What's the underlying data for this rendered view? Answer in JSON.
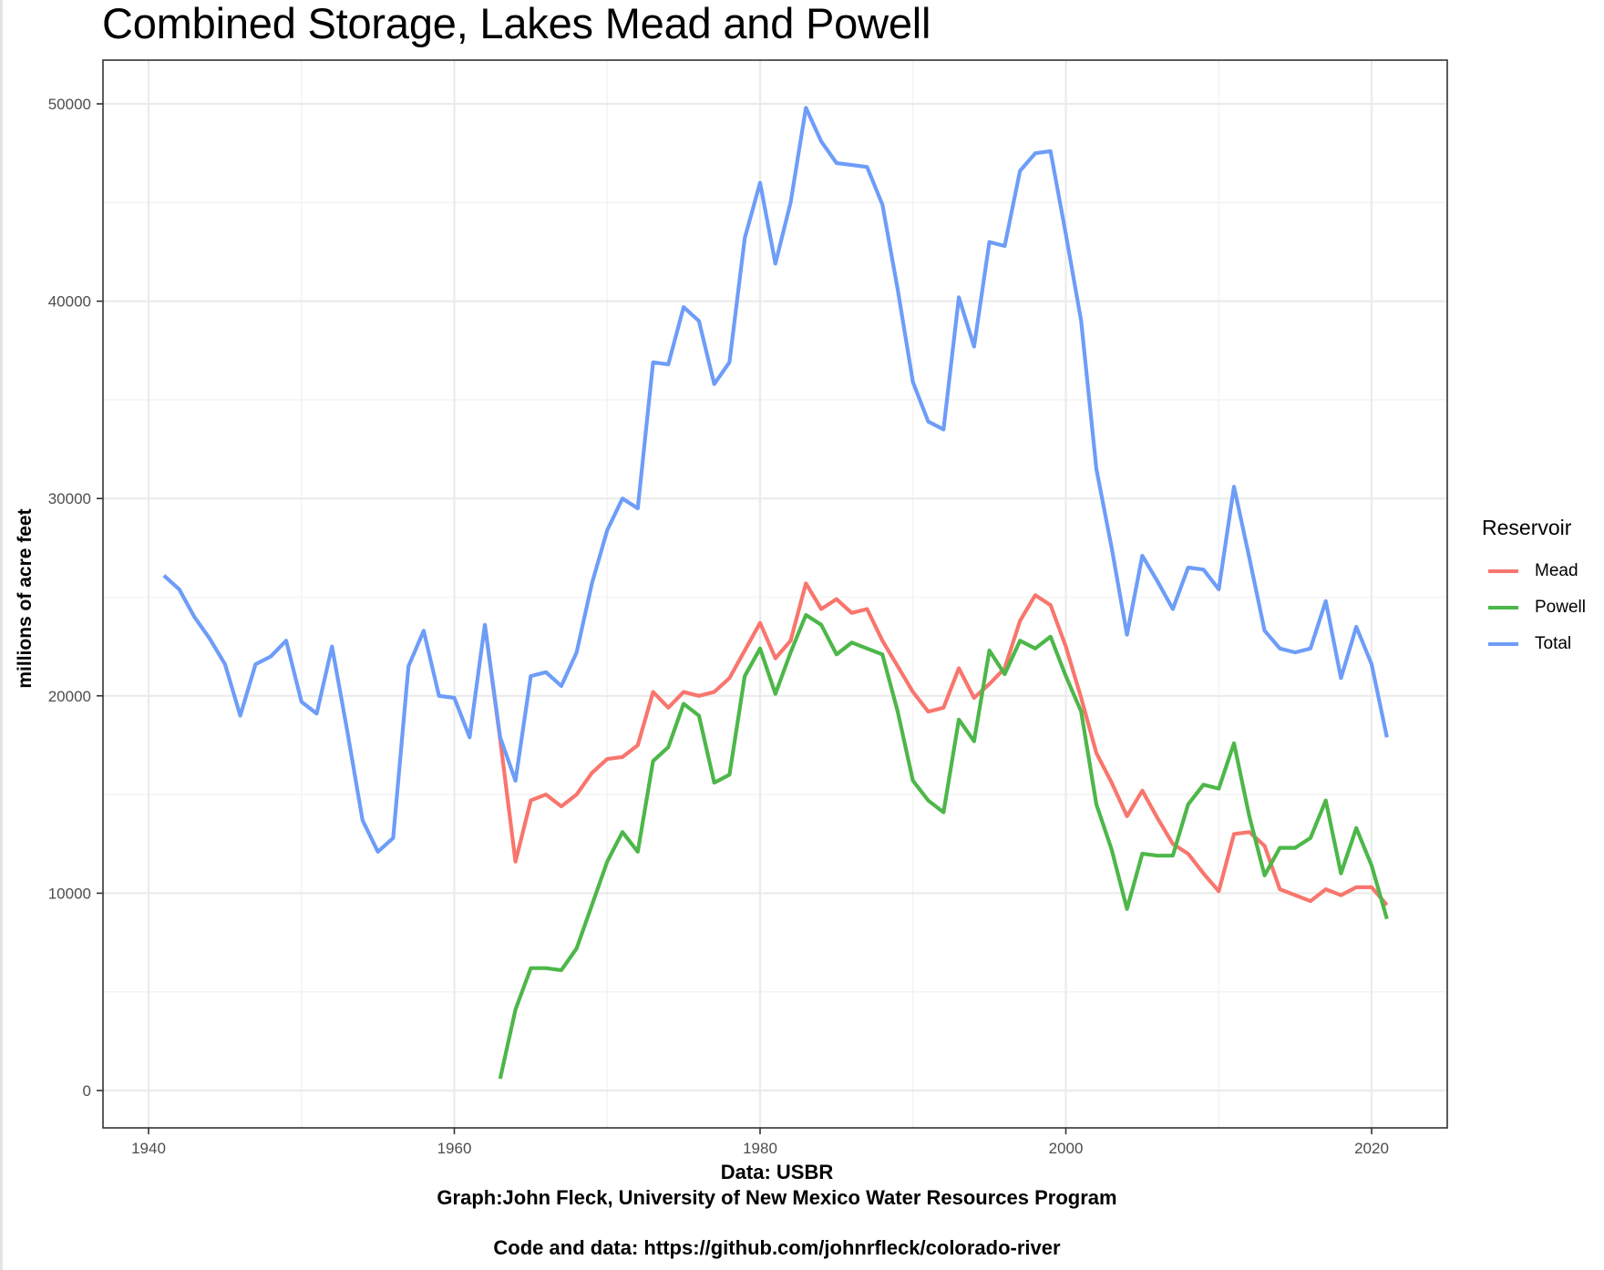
{
  "title": "Combined Storage, Lakes Mead and Powell",
  "y_axis_label": "millions of acre feet",
  "captions": [
    "Data: USBR",
    "Graph:John Fleck, University of New Mexico Water Resources Program",
    "Code and data: https://github.com/johnrfleck/colorado-river"
  ],
  "legend": {
    "title": "Reservoir",
    "items": [
      {
        "label": "Mead",
        "color": "#F8766D"
      },
      {
        "label": "Powell",
        "color": "#4DB749"
      },
      {
        "label": "Total",
        "color": "#6E9DF8"
      }
    ]
  },
  "x_ticks": [
    "1940",
    "1960",
    "1980",
    "2000",
    "2020"
  ],
  "y_ticks": [
    "0",
    "10000",
    "20000",
    "30000",
    "40000",
    "50000"
  ],
  "chart_data": {
    "type": "line",
    "title": "Combined Storage, Lakes Mead and Powell",
    "xlabel": "",
    "ylabel": "millions of acre feet",
    "xlim": [
      1936,
      2025
    ],
    "ylim": [
      -1600,
      52300
    ],
    "x_ticks": [
      1940,
      1960,
      1980,
      2000,
      2020
    ],
    "y_ticks": [
      0,
      10000,
      20000,
      30000,
      40000,
      50000
    ],
    "grid": true,
    "legend_position": "right",
    "legend_title": "Reservoir",
    "series": [
      {
        "name": "Mead",
        "color": "#F8766D",
        "x": [
          1962,
          1963,
          1964,
          1965,
          1966,
          1967,
          1968,
          1969,
          1970,
          1971,
          1972,
          1973,
          1974,
          1975,
          1976,
          1977,
          1978,
          1979,
          1980,
          1981,
          1982,
          1983,
          1984,
          1985,
          1986,
          1987,
          1988,
          1989,
          1990,
          1991,
          1992,
          1993,
          1994,
          1995,
          1996,
          1997,
          1998,
          1999,
          2000,
          2001,
          2002,
          2003,
          2004,
          2005,
          2006,
          2007,
          2008,
          2009,
          2010,
          2011,
          2012,
          2013,
          2014,
          2015,
          2016,
          2017,
          2018,
          2019,
          2020,
          2021
        ],
        "values": [
          23600,
          17800,
          11600,
          14700,
          15000,
          14400,
          15000,
          16100,
          16800,
          16900,
          17500,
          20200,
          19400,
          20200,
          20000,
          20200,
          20900,
          22300,
          23700,
          21900,
          22800,
          25700,
          24400,
          24900,
          24200,
          24400,
          22800,
          21500,
          20200,
          19200,
          19400,
          21400,
          19900,
          20600,
          21400,
          23800,
          25100,
          24600,
          22500,
          19900,
          17100,
          15600,
          13900,
          15200,
          13800,
          12500,
          12000,
          11000,
          10100,
          13000,
          13100,
          12400,
          10200,
          9900,
          9600,
          10200,
          9900,
          10300,
          10300,
          9400
        ]
      },
      {
        "name": "Powell",
        "color": "#4DB749",
        "x": [
          1963,
          1964,
          1965,
          1966,
          1967,
          1968,
          1969,
          1970,
          1971,
          1972,
          1973,
          1974,
          1975,
          1976,
          1977,
          1978,
          1979,
          1980,
          1981,
          1982,
          1983,
          1984,
          1985,
          1986,
          1987,
          1988,
          1989,
          1990,
          1991,
          1992,
          1993,
          1994,
          1995,
          1996,
          1997,
          1998,
          1999,
          2000,
          2001,
          2002,
          2003,
          2004,
          2005,
          2006,
          2007,
          2008,
          2009,
          2010,
          2011,
          2012,
          2013,
          2014,
          2015,
          2016,
          2017,
          2018,
          2019,
          2020,
          2021
        ],
        "values": [
          600,
          4100,
          6200,
          6200,
          6100,
          7200,
          9400,
          11600,
          13100,
          12100,
          16700,
          17400,
          19600,
          19000,
          15600,
          16000,
          21000,
          22400,
          20100,
          22200,
          24100,
          23600,
          22100,
          22700,
          22400,
          22100,
          19200,
          15700,
          14700,
          14100,
          18800,
          17700,
          22300,
          21100,
          22800,
          22400,
          23000,
          21000,
          19200,
          14500,
          12200,
          9200,
          12000,
          11900,
          11900,
          14500,
          15500,
          15300,
          17600,
          13900,
          10900,
          12300,
          12300,
          12800,
          14700,
          11000,
          13300,
          11400,
          8700
        ]
      },
      {
        "name": "Total",
        "color": "#6E9DF8",
        "x": [
          1941,
          1942,
          1943,
          1944,
          1945,
          1946,
          1947,
          1948,
          1949,
          1950,
          1951,
          1952,
          1953,
          1954,
          1955,
          1956,
          1957,
          1958,
          1959,
          1960,
          1961,
          1962,
          1963,
          1964,
          1965,
          1966,
          1967,
          1968,
          1969,
          1970,
          1971,
          1972,
          1973,
          1974,
          1975,
          1976,
          1977,
          1978,
          1979,
          1980,
          1981,
          1982,
          1983,
          1984,
          1985,
          1986,
          1987,
          1988,
          1989,
          1990,
          1991,
          1992,
          1993,
          1994,
          1995,
          1996,
          1997,
          1998,
          1999,
          2000,
          2001,
          2002,
          2003,
          2004,
          2005,
          2006,
          2007,
          2008,
          2009,
          2010,
          2011,
          2012,
          2013,
          2014,
          2015,
          2016,
          2017,
          2018,
          2019,
          2020,
          2021
        ],
        "values": [
          26100,
          25400,
          24000,
          22900,
          21600,
          19000,
          21600,
          22000,
          22800,
          19700,
          19100,
          22500,
          18200,
          13700,
          12100,
          12800,
          21500,
          23300,
          20000,
          19900,
          17900,
          23600,
          17900,
          15700,
          21000,
          21200,
          20500,
          22200,
          25700,
          28400,
          30000,
          29500,
          36900,
          36800,
          39700,
          39000,
          35800,
          36900,
          43200,
          46000,
          41900,
          45000,
          49800,
          48100,
          47000,
          46900,
          46800,
          44900,
          40600,
          35900,
          33900,
          33500,
          40200,
          37700,
          43000,
          42800,
          46600,
          47500,
          47600,
          43400,
          39000,
          31500,
          27500,
          23100,
          27100,
          25800,
          24400,
          26500,
          26400,
          25400,
          30600,
          27000,
          23300,
          22400,
          22200,
          22400,
          24800,
          20900,
          23500,
          21600,
          17900
        ]
      }
    ]
  }
}
